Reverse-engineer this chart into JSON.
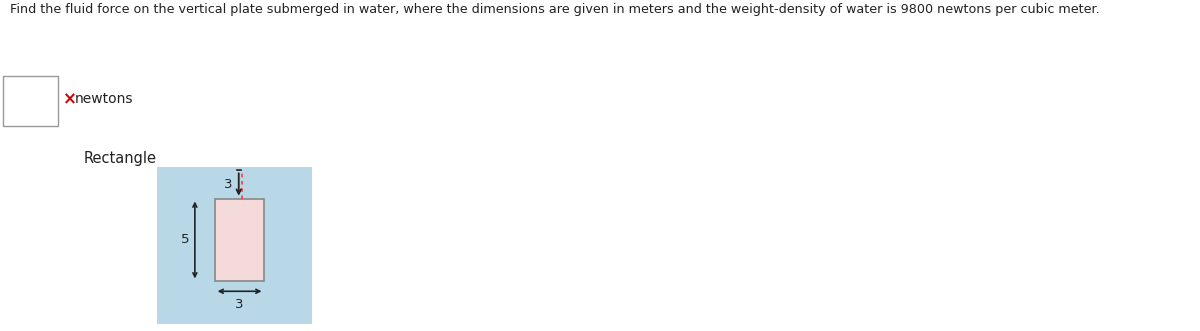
{
  "title_text": "Find the fluid force on the vertical plate submerged in water, where the dimensions are given in meters and the weight-density of water is 9800 newtons per cubic meter.",
  "answer_label": "newtons",
  "shape_label": "Rectangle",
  "bg_color": "#B8D8E8",
  "plate_color": "#F5DADA",
  "plate_border_color": "#888888",
  "dashed_line_color": "#FF4444",
  "arrow_color": "#222222",
  "text_color": "#222222",
  "cross_color": "#CC0000",
  "dim_width": "3",
  "dim_height": "5",
  "dim_depth": "3"
}
